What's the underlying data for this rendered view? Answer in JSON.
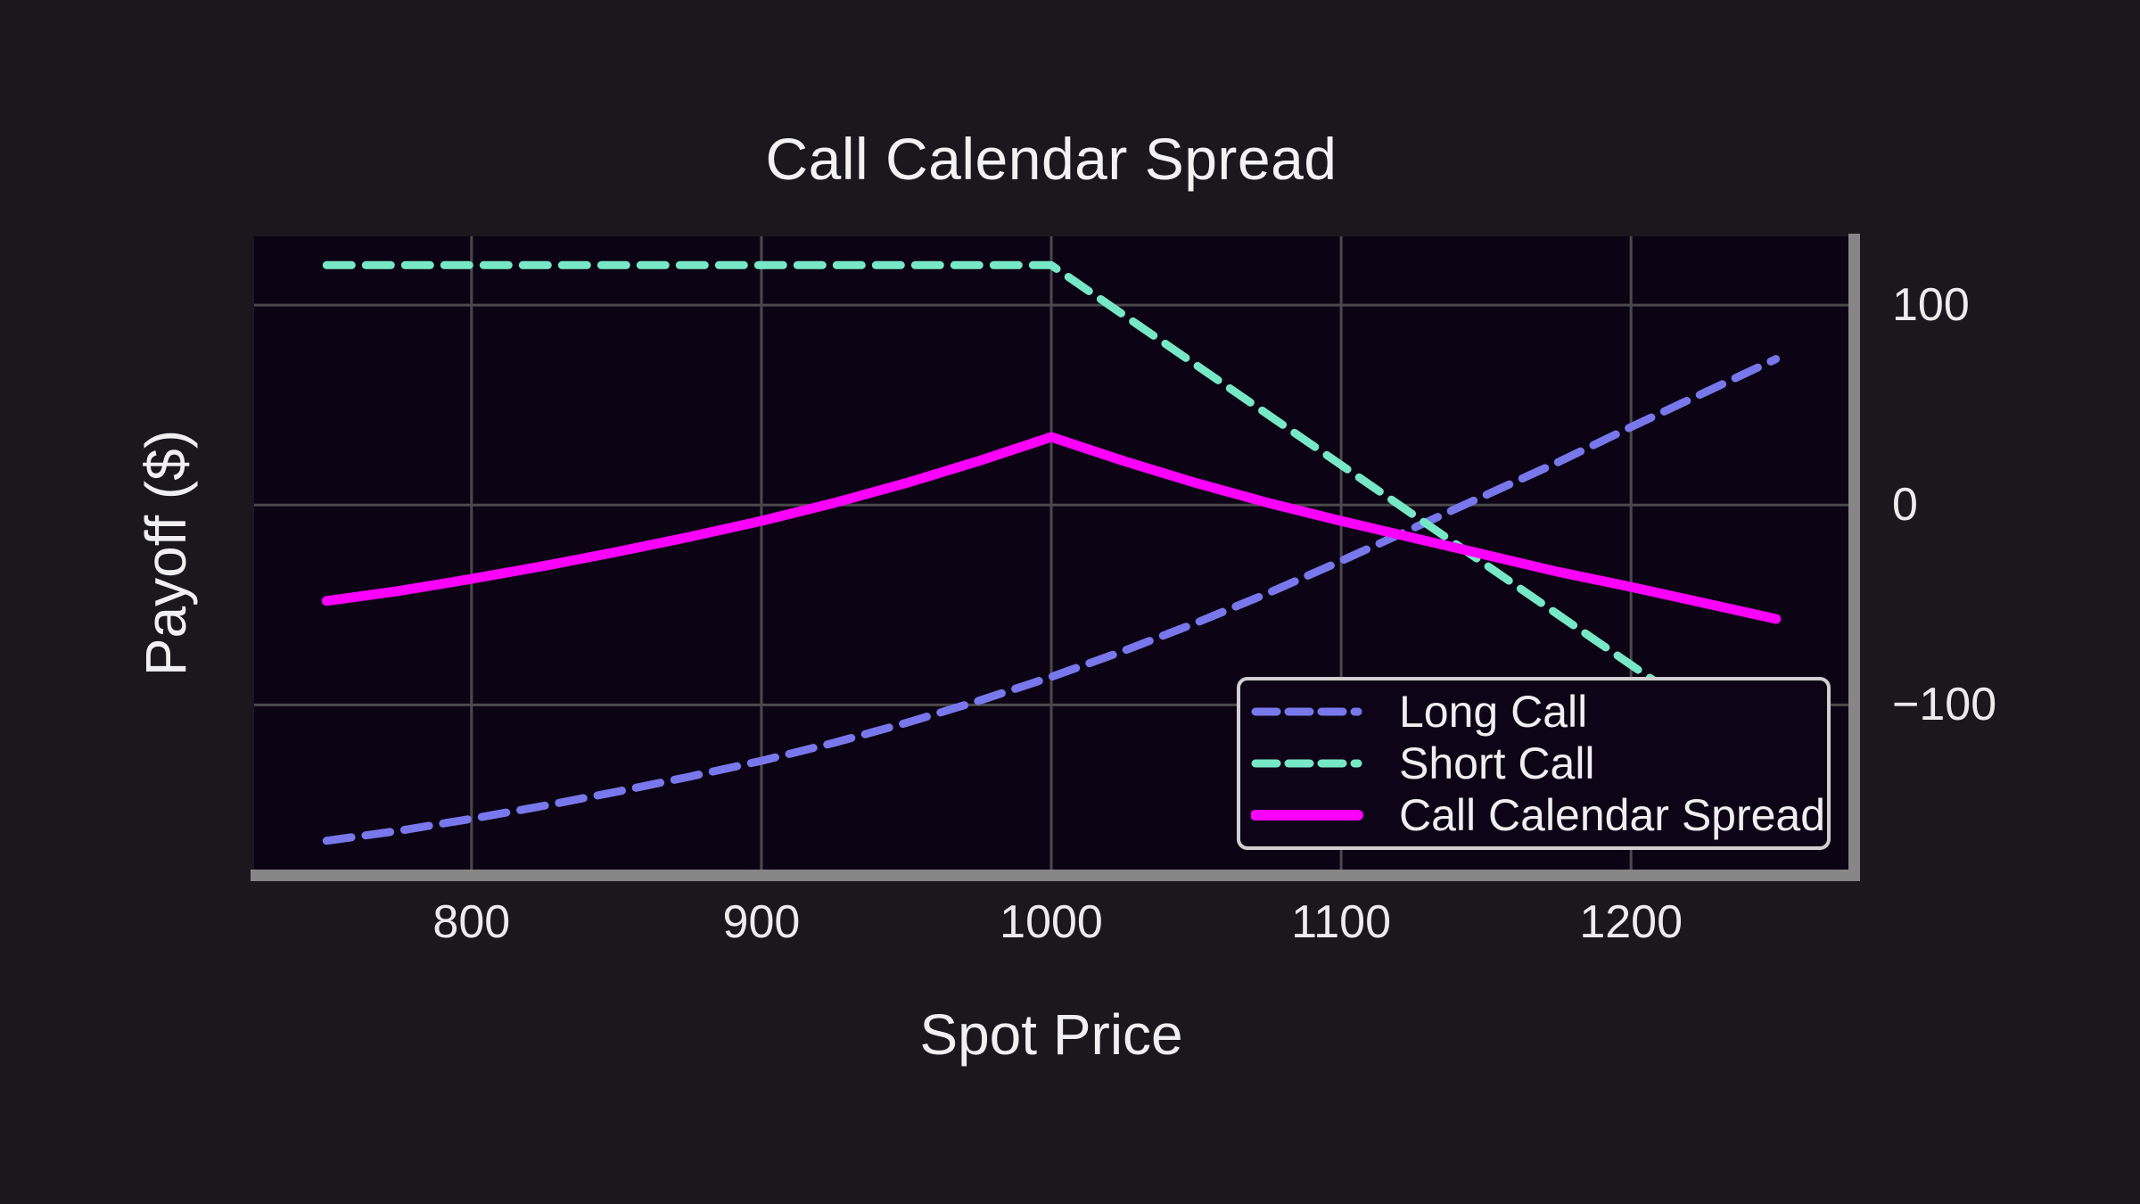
{
  "title": "Call Calendar Spread",
  "style": {
    "outer_background": "#1b181d",
    "plot_background": "#0c0314",
    "grid_color": "#4a4a4a",
    "spine_color": "#868686",
    "text_color": "#f2f2f2",
    "legend_border_color": "#cfcfcf"
  },
  "chart_data": {
    "type": "line",
    "title": "Call Calendar Spread",
    "xlabel": "Spot Price",
    "ylabel": "Payoff ($)",
    "grid": true,
    "legend_position": "lower right",
    "xlim": [
      725,
      1275
    ],
    "ylim": [
      -182.4,
      134.4
    ],
    "x_ticks": [
      {
        "value": 800,
        "label": "800"
      },
      {
        "value": 900,
        "label": "900"
      },
      {
        "value": 1000,
        "label": "1000"
      },
      {
        "value": 1100,
        "label": "1100"
      },
      {
        "value": 1200,
        "label": "1200"
      }
    ],
    "y_ticks": [
      {
        "value": 100,
        "label": "100"
      },
      {
        "value": 0,
        "label": "0"
      },
      {
        "value": -100,
        "label": "−100"
      }
    ],
    "x": [
      750,
      775,
      800,
      825,
      850,
      875,
      900,
      925,
      950,
      975,
      1000,
      1025,
      1050,
      1075,
      1100,
      1125,
      1150,
      1175,
      1200,
      1225,
      1250
    ],
    "series": [
      {
        "name": "Long Call",
        "color": "#7878ec",
        "dash": "28 16",
        "width": 9,
        "values": [
          -168,
          -163,
          -157,
          -150.5,
          -143.5,
          -136,
          -128,
          -119,
          -109,
          -98,
          -86,
          -73,
          -59,
          -44,
          -28,
          -11.5,
          5,
          21.5,
          39,
          56,
          73
        ]
      },
      {
        "name": "Short Call",
        "color": "#77e8c5",
        "dash": "28 16",
        "width": 9,
        "values": [
          120,
          120,
          120,
          120,
          120,
          120,
          120,
          120,
          120,
          120,
          120,
          95,
          70,
          45,
          20,
          -5,
          -30,
          -55,
          -80,
          -105,
          -130
        ]
      },
      {
        "name": "Call Calendar Spread",
        "color": "#fb00fb",
        "dash": "none",
        "width": 11,
        "values": [
          -48,
          -43,
          -37,
          -30.5,
          -23.5,
          -16,
          -8,
          1,
          11,
          22,
          34,
          22,
          11,
          1,
          -8,
          -16.5,
          -25,
          -33.5,
          -41,
          -49,
          -57
        ]
      }
    ]
  }
}
